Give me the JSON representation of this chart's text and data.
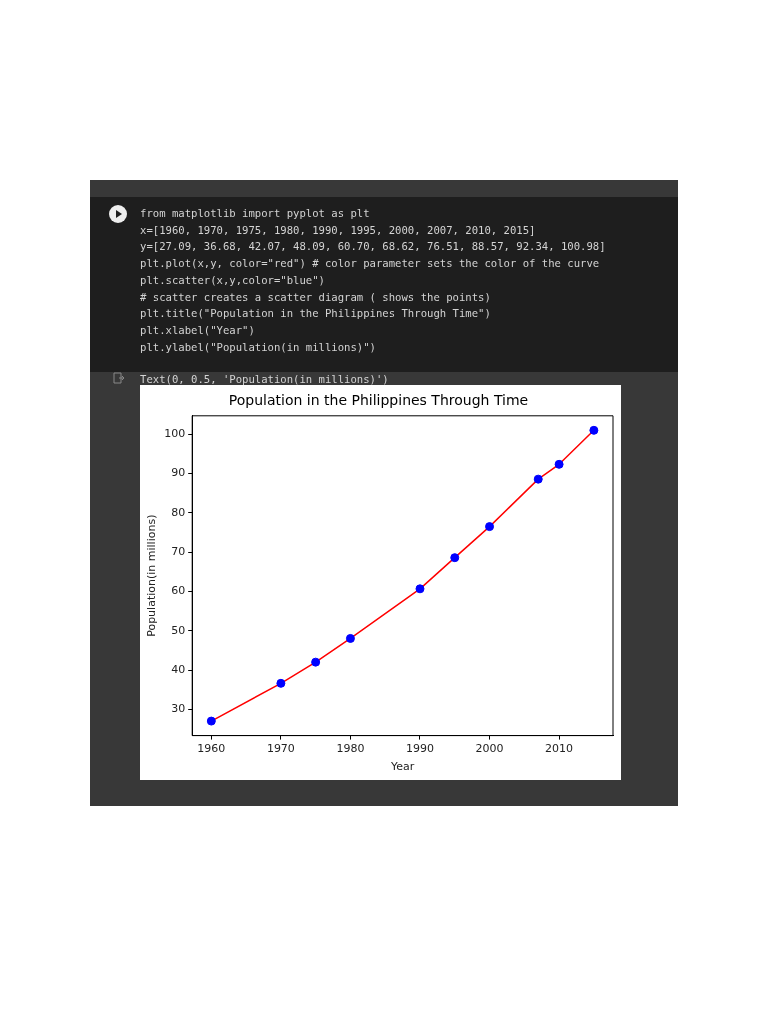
{
  "chart_data": {
    "type": "line",
    "title": "Population in the Philippines Through Time",
    "xlabel": "Year",
    "ylabel": "Population(in millions)",
    "x": [
      1960,
      1970,
      1975,
      1980,
      1990,
      1995,
      2000,
      2007,
      2010,
      2015
    ],
    "series": [
      {
        "color": "#ff0000",
        "marker": "none",
        "values": [
          27.09,
          36.68,
          42.07,
          48.09,
          60.7,
          68.62,
          76.51,
          88.57,
          92.34,
          100.98
        ]
      },
      {
        "type": "scatter",
        "color": "#0000ff",
        "marker": "circle",
        "values": [
          27.09,
          36.68,
          42.07,
          48.09,
          60.7,
          68.62,
          76.51,
          88.57,
          92.34,
          100.98
        ]
      }
    ],
    "xlim": [
      1957.25,
      2017.75
    ],
    "xticks": [
      1960,
      1970,
      1980,
      1990,
      2000,
      2010
    ],
    "ylim": [
      23.4,
      104.67
    ],
    "yticks": [
      30,
      40,
      50,
      60,
      70,
      80,
      90,
      100
    ],
    "grid": false,
    "legend": false,
    "annotations": [
      "from matplotlib import pyplot as plt",
      "x=[1960, 1970, 1975, 1980, 1990, 1995, 2000, 2007, 2010, 2015]",
      "y=[27.09, 36.68, 42.07, 48.09, 60.70, 68.62, 76.51, 88.57, 92.34, 100.98]",
      "plt.plot(x,y, color=\"red\") # color parameter sets the color of the curve",
      "plt.scatter(x,y,color=\"blue\")",
      "# scatter creates a scatter diagram ( shows the points)",
      "plt.title(\"Population in the Philippines Through Time\")",
      "plt.xlabel(\"Year\")",
      "plt.ylabel(\"Population(in millions)\")",
      "Text(0, 0.5, 'Population(in millions)')"
    ]
  }
}
